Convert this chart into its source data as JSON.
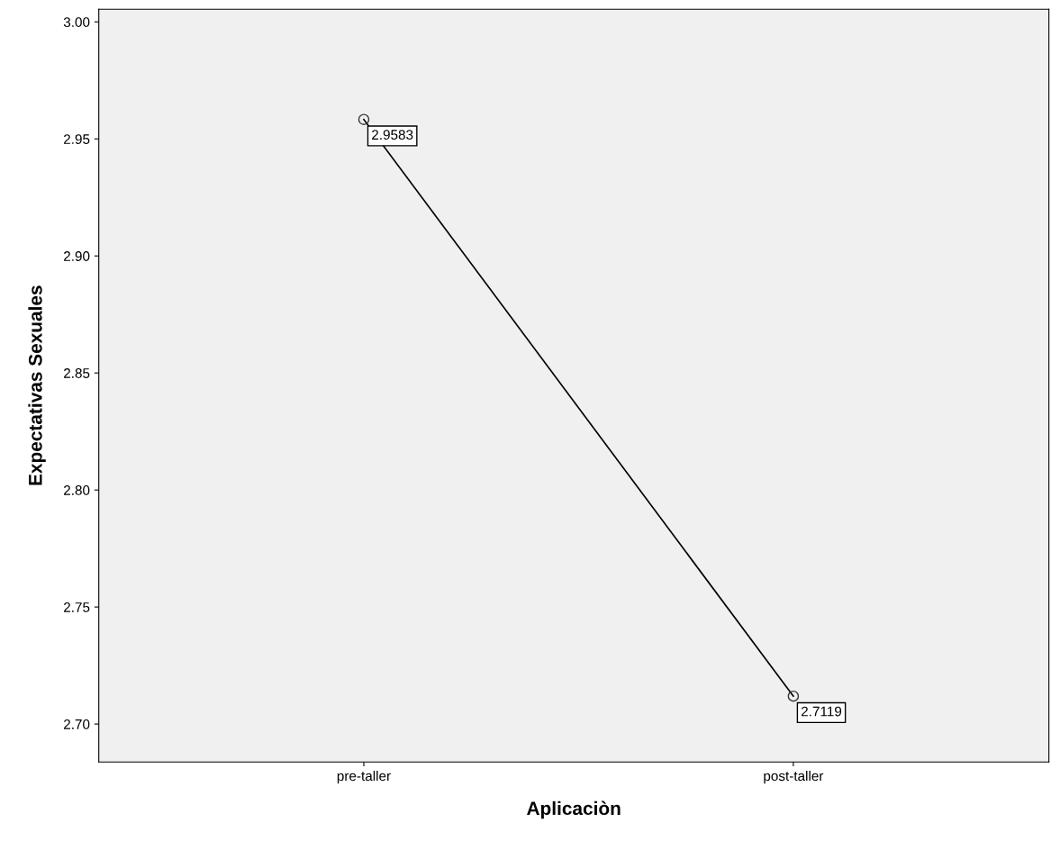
{
  "chart_data": {
    "type": "line",
    "xlabel": "Aplicaciòn",
    "ylabel": "Expectativas Sexuales",
    "categories": [
      "pre-taller",
      "post-taller"
    ],
    "series": [
      {
        "color": "#000000",
        "values": [
          2.9583,
          2.7119
        ]
      }
    ],
    "data_labels": true,
    "marker": "circle",
    "line_style": "solid",
    "grid": false,
    "legend": false,
    "ylim": [
      2.6838,
      3.0054
    ],
    "yticks": [
      {
        "value": 2.7,
        "label": "2.70"
      },
      {
        "value": 2.75,
        "label": "2.75"
      },
      {
        "value": 2.8,
        "label": "2.80"
      },
      {
        "value": 2.85,
        "label": "2.85"
      },
      {
        "value": 2.9,
        "label": "2.90"
      },
      {
        "value": 2.95,
        "label": "2.95"
      },
      {
        "value": 3.0,
        "label": "3.00"
      }
    ]
  }
}
